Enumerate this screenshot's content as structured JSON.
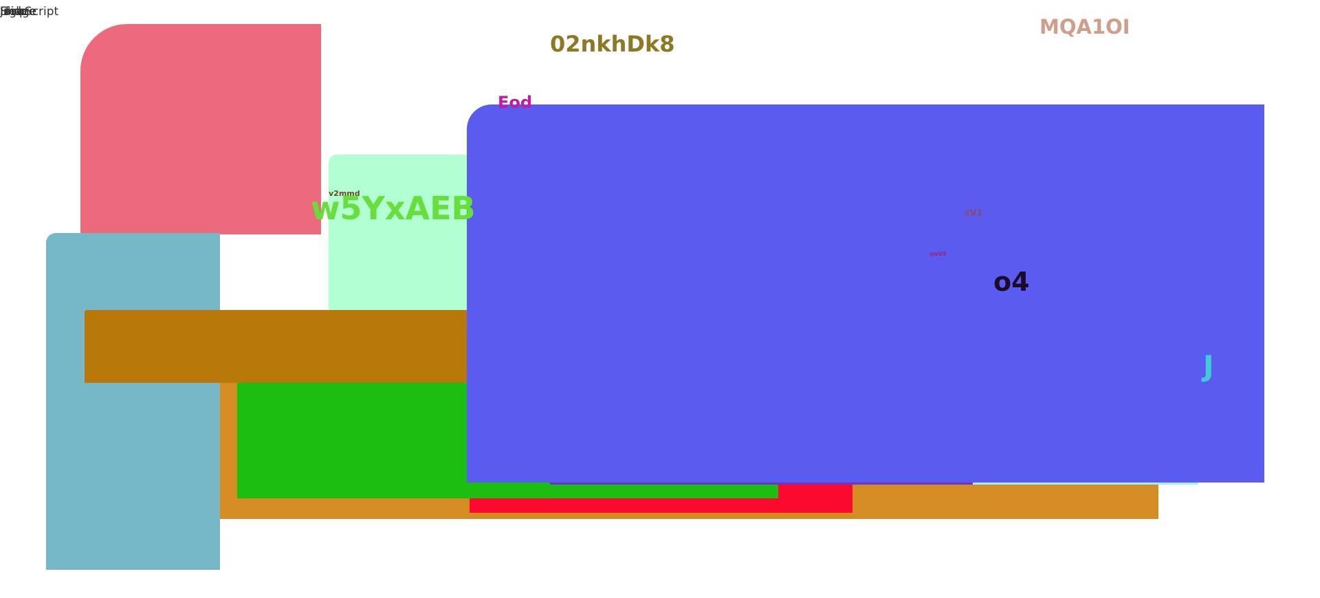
{
  "corner_labels": [
    "JavaScript",
    "Figure",
    "Image",
    "Help",
    "Slide"
  ],
  "labels": {
    "title_olive": "02nkhDk8",
    "title_rose": "MQA1OI",
    "label_magenta": "Eod",
    "label_tiny_brown": "v2mmd",
    "label_big_green": "w5YxAEB",
    "label_small_brown": "zV1",
    "label_tiny_magenta": "sjvV5",
    "label_dark": "o4",
    "label_cyan": "J"
  },
  "colors": {
    "pink": "#ec6a7b",
    "mint": "#b1ffd2",
    "teal": "#76b8c8",
    "orange": "#d58c24",
    "red": "#fb0a2e",
    "green": "#1abf12",
    "brown": "#b8790a",
    "blue": "#5a5bef"
  }
}
